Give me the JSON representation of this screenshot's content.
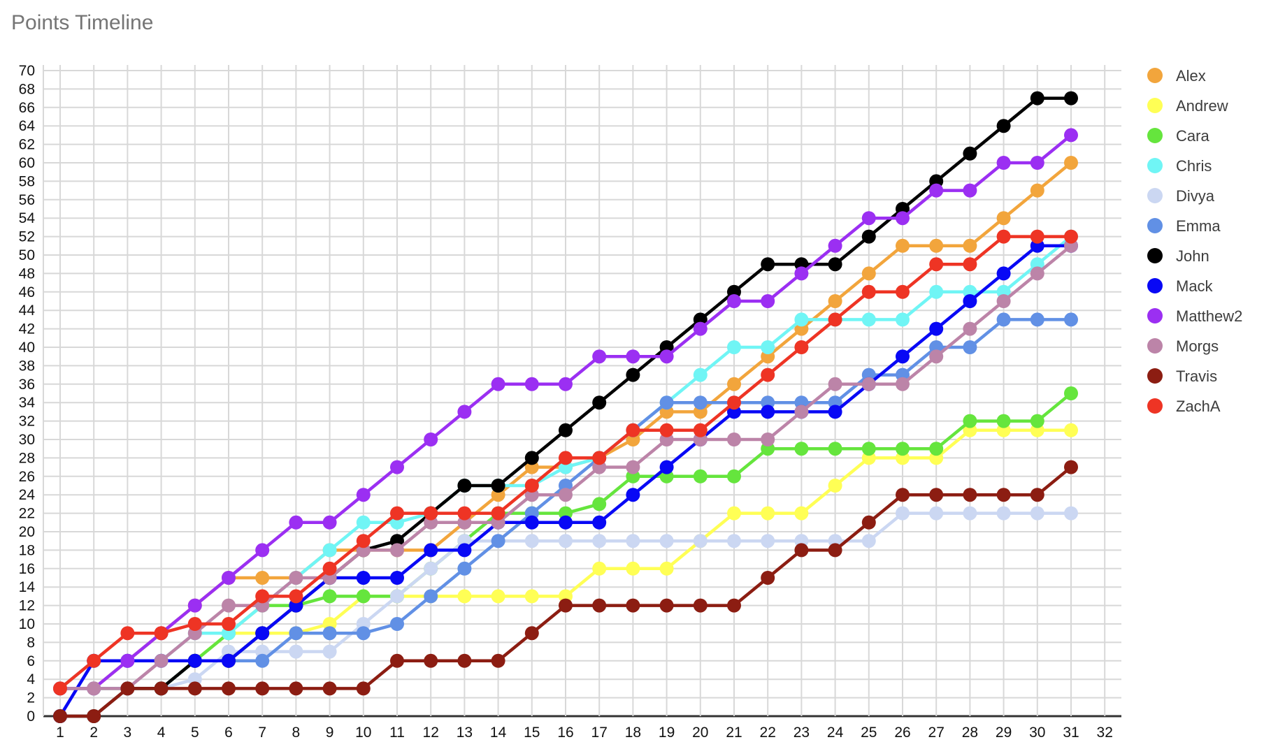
{
  "title": "Points Timeline",
  "chart_data": {
    "type": "line",
    "title": "Points Timeline",
    "xlabel": "",
    "ylabel": "",
    "x": [
      1,
      2,
      3,
      4,
      5,
      6,
      7,
      8,
      9,
      10,
      11,
      12,
      13,
      14,
      15,
      16,
      17,
      18,
      19,
      20,
      21,
      22,
      23,
      24,
      25,
      26,
      27,
      28,
      29,
      30,
      31
    ],
    "x_axis_ticks": [
      1,
      2,
      3,
      4,
      5,
      6,
      7,
      8,
      9,
      10,
      11,
      12,
      13,
      14,
      15,
      16,
      17,
      18,
      19,
      20,
      21,
      22,
      23,
      24,
      25,
      26,
      27,
      28,
      29,
      30,
      31,
      32
    ],
    "y_axis_ticks": [
      0,
      2,
      4,
      6,
      8,
      10,
      12,
      14,
      16,
      18,
      20,
      22,
      24,
      26,
      28,
      30,
      32,
      34,
      36,
      38,
      40,
      42,
      44,
      46,
      48,
      50,
      52,
      54,
      56,
      58,
      60,
      62,
      64,
      66,
      68,
      70
    ],
    "ylim": [
      0,
      70
    ],
    "xlim": [
      1,
      32
    ],
    "grid": true,
    "legend_position": "right",
    "series": [
      {
        "name": "Alex",
        "color": "#F2A53C",
        "values": [
          3,
          3,
          6,
          9,
          12,
          15,
          15,
          15,
          18,
          18,
          18,
          18,
          21,
          24,
          27,
          27,
          28,
          30,
          33,
          33,
          36,
          39,
          42,
          45,
          48,
          51,
          51,
          51,
          54,
          57,
          60
        ]
      },
      {
        "name": "Andrew",
        "color": "#FFFF55",
        "values": [
          3,
          3,
          3,
          3,
          6,
          9,
          9,
          9,
          10,
          13,
          13,
          13,
          13,
          13,
          13,
          13,
          16,
          16,
          16,
          19,
          22,
          22,
          22,
          25,
          28,
          28,
          28,
          31,
          31,
          31,
          31
        ]
      },
      {
        "name": "Cara",
        "color": "#65E53D",
        "values": [
          3,
          3,
          3,
          3,
          6,
          9,
          12,
          12,
          13,
          13,
          13,
          16,
          19,
          22,
          22,
          22,
          23,
          26,
          26,
          26,
          26,
          29,
          29,
          29,
          29,
          29,
          29,
          32,
          32,
          32,
          35
        ]
      },
      {
        "name": "Chris",
        "color": "#70F5F5",
        "values": [
          3,
          6,
          6,
          6,
          9,
          9,
          12,
          15,
          18,
          21,
          21,
          22,
          25,
          25,
          25,
          27,
          28,
          31,
          34,
          37,
          40,
          40,
          43,
          43,
          43,
          43,
          46,
          46,
          46,
          49,
          52
        ]
      },
      {
        "name": "Divya",
        "color": "#CBD7F2",
        "values": [
          3,
          3,
          3,
          3,
          4,
          7,
          7,
          7,
          7,
          10,
          13,
          16,
          19,
          19,
          19,
          19,
          19,
          19,
          19,
          19,
          19,
          19,
          19,
          19,
          19,
          22,
          22,
          22,
          22,
          22,
          22
        ]
      },
      {
        "name": "Emma",
        "color": "#6190E5",
        "values": [
          3,
          3,
          3,
          3,
          6,
          6,
          6,
          9,
          9,
          9,
          10,
          13,
          16,
          19,
          22,
          25,
          28,
          31,
          34,
          34,
          34,
          34,
          34,
          34,
          37,
          37,
          40,
          40,
          43,
          43,
          43
        ]
      },
      {
        "name": "John",
        "color": "#000000",
        "values": [
          0,
          0,
          3,
          3,
          6,
          6,
          9,
          12,
          15,
          18,
          19,
          22,
          25,
          25,
          28,
          31,
          34,
          37,
          40,
          43,
          46,
          49,
          49,
          49,
          52,
          55,
          58,
          61,
          64,
          67,
          67
        ]
      },
      {
        "name": "Mack",
        "color": "#0808F5",
        "values": [
          0,
          6,
          6,
          6,
          6,
          6,
          9,
          12,
          15,
          15,
          15,
          18,
          18,
          21,
          21,
          21,
          21,
          24,
          27,
          30,
          33,
          33,
          33,
          33,
          36,
          39,
          42,
          45,
          48,
          51,
          51
        ]
      },
      {
        "name": "Matthew2",
        "color": "#9B2FF2",
        "values": [
          3,
          3,
          6,
          9,
          12,
          15,
          18,
          21,
          21,
          24,
          27,
          30,
          33,
          36,
          36,
          36,
          39,
          39,
          39,
          42,
          45,
          45,
          48,
          51,
          54,
          54,
          57,
          57,
          60,
          60,
          63
        ]
      },
      {
        "name": "Morgs",
        "color": "#BC84A8",
        "values": [
          3,
          3,
          3,
          6,
          9,
          12,
          12,
          15,
          15,
          18,
          18,
          21,
          21,
          21,
          24,
          24,
          27,
          27,
          30,
          30,
          30,
          30,
          33,
          36,
          36,
          36,
          39,
          42,
          45,
          48,
          51
        ]
      },
      {
        "name": "Travis",
        "color": "#8C1D12",
        "values": [
          0,
          0,
          3,
          3,
          3,
          3,
          3,
          3,
          3,
          3,
          6,
          6,
          6,
          6,
          9,
          12,
          12,
          12,
          12,
          12,
          12,
          15,
          18,
          18,
          21,
          24,
          24,
          24,
          24,
          24,
          27
        ]
      },
      {
        "name": "ZachA",
        "color": "#EE3424",
        "values": [
          3,
          6,
          9,
          9,
          10,
          10,
          13,
          13,
          16,
          19,
          22,
          22,
          22,
          22,
          25,
          28,
          28,
          31,
          31,
          31,
          34,
          37,
          40,
          43,
          46,
          46,
          49,
          49,
          52,
          52,
          52
        ]
      }
    ]
  },
  "colors": {
    "title_text": "#757575",
    "tick_text": "#111111",
    "legend_text": "#3d3d3d",
    "gridline": "#d8d8d8",
    "axis_line": "#333333",
    "background": "#ffffff"
  }
}
